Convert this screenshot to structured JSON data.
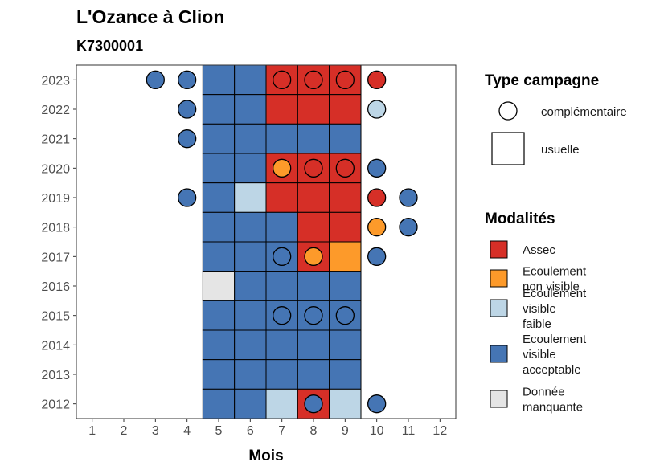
{
  "chart_data": {
    "type": "heatmap",
    "title": "L'Ozance à Clion",
    "subtitle": "K7300001",
    "xlabel": "Mois",
    "ylabel": "",
    "x_ticks": [
      "1",
      "2",
      "3",
      "4",
      "5",
      "6",
      "7",
      "8",
      "9",
      "10",
      "11",
      "12"
    ],
    "y_ticks": [
      "2012",
      "2013",
      "2014",
      "2015",
      "2016",
      "2017",
      "2018",
      "2019",
      "2020",
      "2021",
      "2022",
      "2023"
    ],
    "xlim": [
      0.5,
      12.5
    ],
    "ylim": [
      2011.5,
      2023.5
    ],
    "grid": false,
    "legend_position": "right",
    "colors": {
      "Assec": "#d62f27",
      "Ecoulement non visible": "#fd9a2a",
      "Ecoulement visible faible": "#bdd6e6",
      "Ecoulement visible acceptable": "#4575b4",
      "Donnée manquante": "#e5e5e5"
    },
    "legend_type": {
      "title": "Type campagne",
      "entries": [
        {
          "label": "complémentaire",
          "shape": "circle"
        },
        {
          "label": "usuelle",
          "shape": "square"
        }
      ]
    },
    "legend_modalites": {
      "title": "Modalités",
      "entries": [
        {
          "key": "Assec",
          "lines": [
            "Assec"
          ]
        },
        {
          "key": "Ecoulement non visible",
          "lines": [
            "Ecoulement",
            "non visible"
          ]
        },
        {
          "key": "Ecoulement visible faible",
          "lines": [
            "Ecoulement",
            "visible",
            "faible"
          ]
        },
        {
          "key": "Ecoulement visible acceptable",
          "lines": [
            "Ecoulement",
            "visible",
            "acceptable"
          ]
        },
        {
          "key": "Donnée manquante",
          "lines": [
            "Donnée",
            "manquante"
          ]
        }
      ]
    },
    "usuelle": [
      {
        "year": 2023,
        "month": 5,
        "modalite": "Ecoulement visible acceptable"
      },
      {
        "year": 2023,
        "month": 6,
        "modalite": "Ecoulement visible acceptable"
      },
      {
        "year": 2023,
        "month": 7,
        "modalite": "Assec"
      },
      {
        "year": 2023,
        "month": 8,
        "modalite": "Assec"
      },
      {
        "year": 2023,
        "month": 9,
        "modalite": "Assec"
      },
      {
        "year": 2022,
        "month": 5,
        "modalite": "Ecoulement visible acceptable"
      },
      {
        "year": 2022,
        "month": 6,
        "modalite": "Ecoulement visible acceptable"
      },
      {
        "year": 2022,
        "month": 7,
        "modalite": "Assec"
      },
      {
        "year": 2022,
        "month": 8,
        "modalite": "Assec"
      },
      {
        "year": 2022,
        "month": 9,
        "modalite": "Assec"
      },
      {
        "year": 2021,
        "month": 5,
        "modalite": "Ecoulement visible acceptable"
      },
      {
        "year": 2021,
        "month": 6,
        "modalite": "Ecoulement visible acceptable"
      },
      {
        "year": 2021,
        "month": 7,
        "modalite": "Ecoulement visible acceptable"
      },
      {
        "year": 2021,
        "month": 8,
        "modalite": "Ecoulement visible acceptable"
      },
      {
        "year": 2021,
        "month": 9,
        "modalite": "Ecoulement visible acceptable"
      },
      {
        "year": 2020,
        "month": 5,
        "modalite": "Ecoulement visible acceptable"
      },
      {
        "year": 2020,
        "month": 6,
        "modalite": "Ecoulement visible acceptable"
      },
      {
        "year": 2020,
        "month": 7,
        "modalite": "Assec"
      },
      {
        "year": 2020,
        "month": 8,
        "modalite": "Assec"
      },
      {
        "year": 2020,
        "month": 9,
        "modalite": "Assec"
      },
      {
        "year": 2019,
        "month": 5,
        "modalite": "Ecoulement visible acceptable"
      },
      {
        "year": 2019,
        "month": 6,
        "modalite": "Ecoulement visible faible"
      },
      {
        "year": 2019,
        "month": 7,
        "modalite": "Assec"
      },
      {
        "year": 2019,
        "month": 8,
        "modalite": "Assec"
      },
      {
        "year": 2019,
        "month": 9,
        "modalite": "Assec"
      },
      {
        "year": 2018,
        "month": 5,
        "modalite": "Ecoulement visible acceptable"
      },
      {
        "year": 2018,
        "month": 6,
        "modalite": "Ecoulement visible acceptable"
      },
      {
        "year": 2018,
        "month": 7,
        "modalite": "Ecoulement visible acceptable"
      },
      {
        "year": 2018,
        "month": 8,
        "modalite": "Assec"
      },
      {
        "year": 2018,
        "month": 9,
        "modalite": "Assec"
      },
      {
        "year": 2017,
        "month": 5,
        "modalite": "Ecoulement visible acceptable"
      },
      {
        "year": 2017,
        "month": 6,
        "modalite": "Ecoulement visible acceptable"
      },
      {
        "year": 2017,
        "month": 7,
        "modalite": "Ecoulement visible acceptable"
      },
      {
        "year": 2017,
        "month": 8,
        "modalite": "Assec"
      },
      {
        "year": 2017,
        "month": 9,
        "modalite": "Ecoulement non visible"
      },
      {
        "year": 2016,
        "month": 5,
        "modalite": "Donnée manquante"
      },
      {
        "year": 2016,
        "month": 6,
        "modalite": "Ecoulement visible acceptable"
      },
      {
        "year": 2016,
        "month": 7,
        "modalite": "Ecoulement visible acceptable"
      },
      {
        "year": 2016,
        "month": 8,
        "modalite": "Ecoulement visible acceptable"
      },
      {
        "year": 2016,
        "month": 9,
        "modalite": "Ecoulement visible acceptable"
      },
      {
        "year": 2015,
        "month": 5,
        "modalite": "Ecoulement visible acceptable"
      },
      {
        "year": 2015,
        "month": 6,
        "modalite": "Ecoulement visible acceptable"
      },
      {
        "year": 2015,
        "month": 7,
        "modalite": "Ecoulement visible acceptable"
      },
      {
        "year": 2015,
        "month": 8,
        "modalite": "Ecoulement visible acceptable"
      },
      {
        "year": 2015,
        "month": 9,
        "modalite": "Ecoulement visible acceptable"
      },
      {
        "year": 2014,
        "month": 5,
        "modalite": "Ecoulement visible acceptable"
      },
      {
        "year": 2014,
        "month": 6,
        "modalite": "Ecoulement visible acceptable"
      },
      {
        "year": 2014,
        "month": 7,
        "modalite": "Ecoulement visible acceptable"
      },
      {
        "year": 2014,
        "month": 8,
        "modalite": "Ecoulement visible acceptable"
      },
      {
        "year": 2014,
        "month": 9,
        "modalite": "Ecoulement visible acceptable"
      },
      {
        "year": 2013,
        "month": 5,
        "modalite": "Ecoulement visible acceptable"
      },
      {
        "year": 2013,
        "month": 6,
        "modalite": "Ecoulement visible acceptable"
      },
      {
        "year": 2013,
        "month": 7,
        "modalite": "Ecoulement visible acceptable"
      },
      {
        "year": 2013,
        "month": 8,
        "modalite": "Ecoulement visible acceptable"
      },
      {
        "year": 2013,
        "month": 9,
        "modalite": "Ecoulement visible acceptable"
      },
      {
        "year": 2012,
        "month": 5,
        "modalite": "Ecoulement visible acceptable"
      },
      {
        "year": 2012,
        "month": 6,
        "modalite": "Ecoulement visible acceptable"
      },
      {
        "year": 2012,
        "month": 7,
        "modalite": "Ecoulement visible faible"
      },
      {
        "year": 2012,
        "month": 8,
        "modalite": "Assec"
      },
      {
        "year": 2012,
        "month": 9,
        "modalite": "Ecoulement visible faible"
      }
    ],
    "complementaire": [
      {
        "year": 2023,
        "month": 3,
        "modalite": "Ecoulement visible acceptable"
      },
      {
        "year": 2023,
        "month": 4,
        "modalite": "Ecoulement visible acceptable"
      },
      {
        "year": 2023,
        "month": 7,
        "modalite": "Assec"
      },
      {
        "year": 2023,
        "month": 8,
        "modalite": "Assec"
      },
      {
        "year": 2023,
        "month": 9,
        "modalite": "Assec"
      },
      {
        "year": 2023,
        "month": 10,
        "modalite": "Assec"
      },
      {
        "year": 2022,
        "month": 4,
        "modalite": "Ecoulement visible acceptable"
      },
      {
        "year": 2022,
        "month": 10,
        "modalite": "Ecoulement visible faible"
      },
      {
        "year": 2021,
        "month": 4,
        "modalite": "Ecoulement visible acceptable"
      },
      {
        "year": 2020,
        "month": 7,
        "modalite": "Ecoulement non visible"
      },
      {
        "year": 2020,
        "month": 8,
        "modalite": "Assec"
      },
      {
        "year": 2020,
        "month": 9,
        "modalite": "Assec"
      },
      {
        "year": 2020,
        "month": 10,
        "modalite": "Ecoulement visible acceptable"
      },
      {
        "year": 2019,
        "month": 4,
        "modalite": "Ecoulement visible acceptable"
      },
      {
        "year": 2019,
        "month": 10,
        "modalite": "Assec"
      },
      {
        "year": 2019,
        "month": 11,
        "modalite": "Ecoulement visible acceptable"
      },
      {
        "year": 2018,
        "month": 10,
        "modalite": "Ecoulement non visible"
      },
      {
        "year": 2018,
        "month": 11,
        "modalite": "Ecoulement visible acceptable"
      },
      {
        "year": 2017,
        "month": 7,
        "modalite": "Ecoulement visible acceptable"
      },
      {
        "year": 2017,
        "month": 8,
        "modalite": "Ecoulement non visible"
      },
      {
        "year": 2017,
        "month": 10,
        "modalite": "Ecoulement visible acceptable"
      },
      {
        "year": 2015,
        "month": 7,
        "modalite": "Ecoulement visible acceptable"
      },
      {
        "year": 2015,
        "month": 8,
        "modalite": "Ecoulement visible acceptable"
      },
      {
        "year": 2015,
        "month": 9,
        "modalite": "Ecoulement visible acceptable"
      },
      {
        "year": 2012,
        "month": 8,
        "modalite": "Ecoulement visible acceptable"
      },
      {
        "year": 2012,
        "month": 10,
        "modalite": "Ecoulement visible acceptable"
      }
    ]
  }
}
